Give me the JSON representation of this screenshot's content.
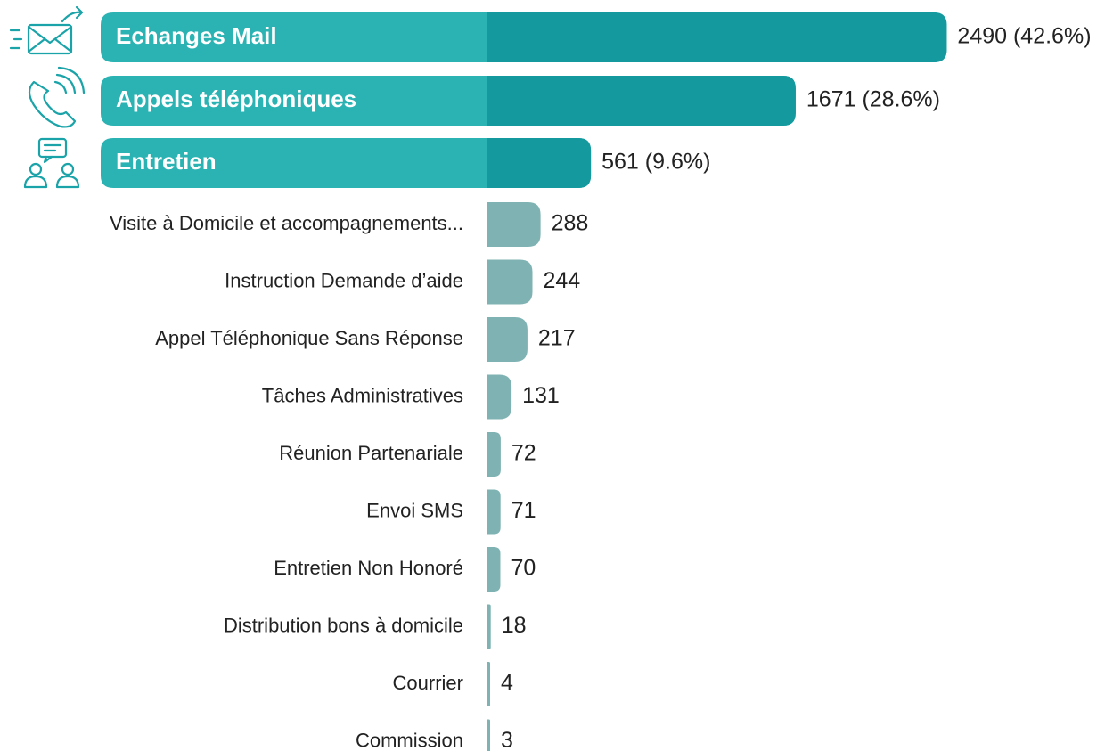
{
  "chart_data": {
    "type": "bar",
    "categories": [
      "Echanges Mail",
      "Appels téléphoniques",
      "Entretien",
      "Visite à Domicile et accompagnements...",
      "Instruction Demande d’aide",
      "Appel Téléphonique Sans Réponse",
      "Tâches Administratives",
      "Réunion Partenariale",
      "Envoi SMS",
      "Entretien Non Honoré",
      "Distribution bons à domicile",
      "Courrier",
      "Commission"
    ],
    "values": [
      2490,
      1671,
      561,
      288,
      244,
      217,
      131,
      72,
      71,
      70,
      18,
      4,
      3
    ],
    "value_labels": [
      "2490 (42.6%)",
      "1671 (28.6%)",
      "561 (9.6%)",
      "288",
      "244",
      "217",
      "131",
      "72",
      "71",
      "70",
      "18",
      "4",
      "3"
    ],
    "color": "#7fb3b3",
    "highlight_color": "#14999e"
  }
}
